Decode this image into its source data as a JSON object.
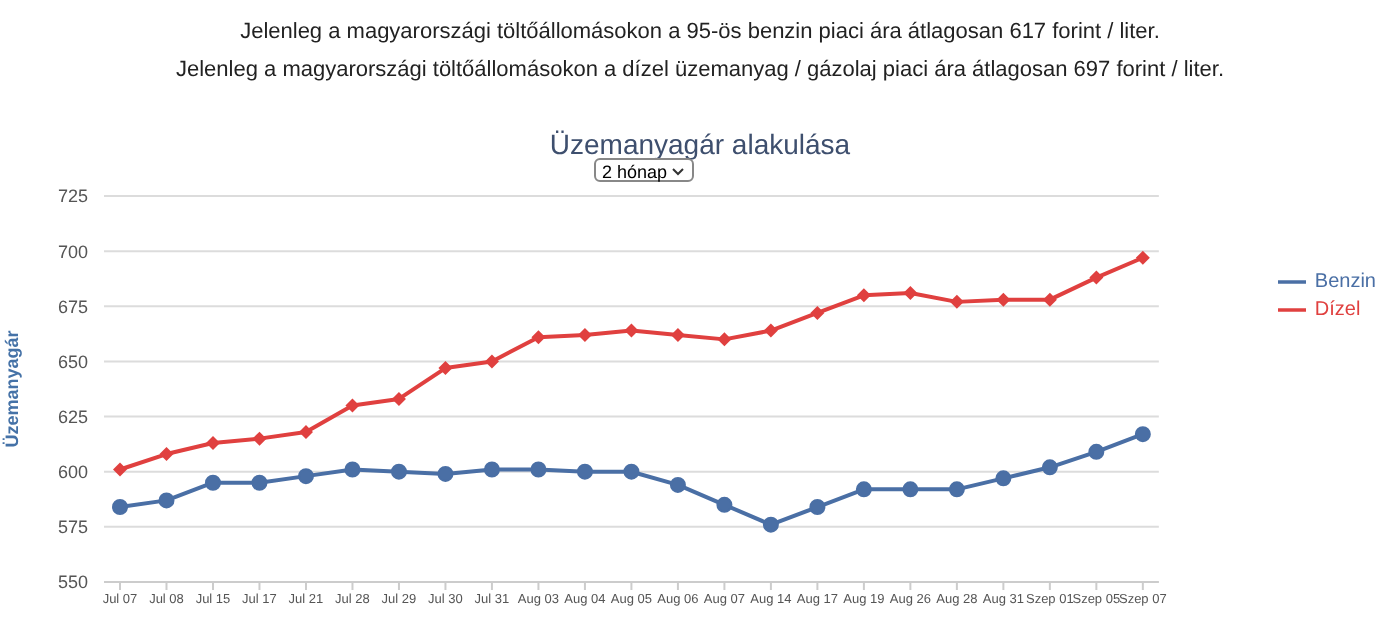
{
  "chart_data": {
    "type": "line",
    "title": "Üzemanyagár alakulása",
    "ylabel": "Üzemanyagár",
    "annotations": [
      "Jelenleg a magyarországi töltőállomásokon a 95-ös benzin piaci ára átlagosan 617 forint / liter.",
      "Jelenleg a magyarországi töltőállomásokon a dízel üzemanyag / gázolaj piaci ára átlagosan 697 forint / liter.",
      "2 hónap"
    ],
    "categories": [
      "Jul 07",
      "Jul 08",
      "Jul 15",
      "Jul 17",
      "Jul 21",
      "Jul 28",
      "Jul 29",
      "Jul 30",
      "Jul 31",
      "Aug 03",
      "Aug 04",
      "Aug 05",
      "Aug 06",
      "Aug 07",
      "Aug 14",
      "Aug 17",
      "Aug 19",
      "Aug 26",
      "Aug 28",
      "Aug 31",
      "Szep 01",
      "Szep 05",
      "Szep 07"
    ],
    "series": [
      {
        "name": "Benzin",
        "color": "#4a6fa5",
        "marker": "circle",
        "values": [
          584,
          587,
          595,
          595,
          598,
          601,
          600,
          599,
          601,
          601,
          600,
          600,
          594,
          585,
          576,
          584,
          592,
          592,
          592,
          597,
          602,
          609,
          617
        ]
      },
      {
        "name": "Dízel",
        "color": "#e0403f",
        "marker": "diamond",
        "values": [
          601,
          608,
          613,
          615,
          618,
          630,
          633,
          647,
          650,
          661,
          662,
          664,
          662,
          660,
          664,
          672,
          680,
          681,
          677,
          678,
          678,
          688,
          697
        ]
      }
    ],
    "ylim": [
      550,
      725
    ],
    "yticks": [
      550,
      575,
      600,
      625,
      650,
      675,
      700,
      725
    ],
    "grid": "y",
    "legend": "right",
    "line_style": "solid"
  }
}
